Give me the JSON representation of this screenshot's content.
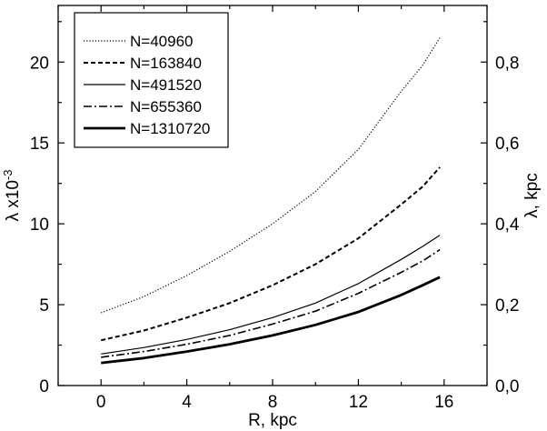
{
  "chart_data": {
    "type": "line",
    "xlabel": "R, kpc",
    "ylabel_left_main": "λ x10",
    "ylabel_left_exp": "-3",
    "ylabel_right": "λ, kpc",
    "xlim": [
      -2,
      18
    ],
    "ylim_left": [
      0,
      23.5
    ],
    "ylim_right": [
      0,
      0.94
    ],
    "x_ticks": [
      0,
      4,
      8,
      12,
      16
    ],
    "x_tick_labels": [
      "0",
      "4",
      "8",
      "12",
      "16"
    ],
    "y_left_ticks": [
      0,
      5,
      10,
      15,
      20
    ],
    "y_left_tick_labels": [
      "0",
      "5",
      "10",
      "15",
      "20"
    ],
    "y_right_ticks": [
      0,
      0.2,
      0.4,
      0.6,
      0.8
    ],
    "y_right_tick_labels": [
      "0,0",
      "0,2",
      "0,4",
      "0,6",
      "0,8"
    ],
    "legend_position": "top-left",
    "grid": false,
    "x": [
      0,
      2,
      4,
      6,
      8,
      10,
      12,
      14,
      15,
      15.8
    ],
    "series": [
      {
        "name": "N=40960",
        "style": "dotted",
        "values": [
          4.5,
          5.5,
          6.8,
          8.3,
          10.0,
          12.0,
          14.6,
          18.2,
          19.8,
          21.5
        ]
      },
      {
        "name": "N=163840",
        "style": "dashed",
        "values": [
          2.8,
          3.4,
          4.2,
          5.1,
          6.2,
          7.5,
          9.1,
          11.2,
          12.3,
          13.5
        ]
      },
      {
        "name": "N=491520",
        "style": "solid-thin",
        "values": [
          1.95,
          2.35,
          2.85,
          3.45,
          4.2,
          5.1,
          6.3,
          7.8,
          8.6,
          9.3
        ]
      },
      {
        "name": "N=655360",
        "style": "dashdot",
        "values": [
          1.75,
          2.1,
          2.55,
          3.1,
          3.8,
          4.6,
          5.7,
          7.0,
          7.7,
          8.4
        ]
      },
      {
        "name": "N=1310720",
        "style": "solid-thick",
        "values": [
          1.4,
          1.7,
          2.1,
          2.55,
          3.1,
          3.75,
          4.55,
          5.6,
          6.2,
          6.7
        ]
      }
    ]
  },
  "colors": {
    "line": "#000000",
    "background": "#ffffff"
  }
}
